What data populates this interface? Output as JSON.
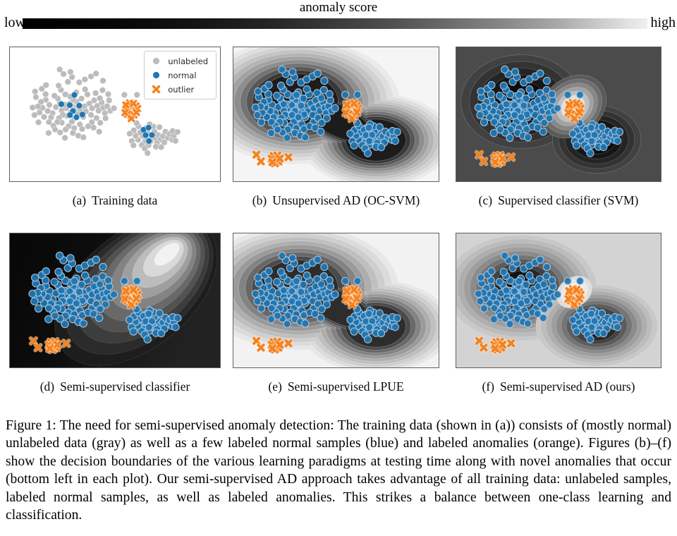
{
  "colorbar": {
    "title": "anomaly score",
    "left_label": "low",
    "right_label": "high",
    "gradient": [
      "#000000",
      "#efefef"
    ]
  },
  "legend": {
    "items": [
      {
        "label": "unlabeled",
        "marker": "circle",
        "color": "#bcbcbc"
      },
      {
        "label": "normal",
        "marker": "circle",
        "color": "#1f77b4"
      },
      {
        "label": "outlier",
        "marker": "x",
        "color": "#f5821e"
      }
    ]
  },
  "colors": {
    "normal_blue": "#1f77b4",
    "blue_edge": "#a9c6dd",
    "unlabeled_gray": "#bcbcbc",
    "outlier_orange": "#f5821e"
  },
  "figure": {
    "caption": "Figure 1: The need for semi-supervised anomaly detection: The training data (shown in (a)) consists of (mostly normal) unlabeled data (gray) as well as a few labeled normal samples (blue) and labeled anomalies (orange). Figures (b)–(f) show the decision boundaries of the various learning paradigms at testing time along with novel anomalies that occur (bottom left in each plot). Our semi-supervised AD approach takes advantage of all training data: unlabeled samples, labeled normal samples, as well as labeled anomalies. This strikes a balance between one-class learning and classification."
  },
  "chart_data": {
    "type": "scatter",
    "description": "Six small-multiple 2D scatter panels; panels b-f overlay grayscale anomaly-score contour fields. Point coordinates are fractions of panel width/height (x right, y down).",
    "points": {
      "cluster_left": [
        [
          0.296,
          0.438
        ],
        [
          0.312,
          0.452
        ],
        [
          0.283,
          0.421
        ],
        [
          0.305,
          0.469
        ],
        [
          0.327,
          0.43
        ],
        [
          0.268,
          0.455
        ],
        [
          0.29,
          0.487
        ],
        [
          0.318,
          0.405
        ],
        [
          0.259,
          0.428
        ],
        [
          0.334,
          0.462
        ],
        [
          0.246,
          0.472
        ],
        [
          0.355,
          0.441
        ],
        [
          0.301,
          0.392
        ],
        [
          0.273,
          0.512
        ],
        [
          0.322,
          0.498
        ],
        [
          0.238,
          0.415
        ],
        [
          0.362,
          0.478
        ],
        [
          0.287,
          0.368
        ],
        [
          0.341,
          0.383
        ],
        [
          0.252,
          0.504
        ],
        [
          0.219,
          0.447
        ],
        [
          0.378,
          0.42
        ],
        [
          0.308,
          0.532
        ],
        [
          0.264,
          0.352
        ],
        [
          0.349,
          0.52
        ],
        [
          0.228,
          0.382
        ],
        [
          0.391,
          0.455
        ],
        [
          0.295,
          0.556
        ],
        [
          0.234,
          0.528
        ],
        [
          0.369,
          0.352
        ],
        [
          0.203,
          0.492
        ],
        [
          0.401,
          0.396
        ],
        [
          0.316,
          0.337
        ],
        [
          0.247,
          0.563
        ],
        [
          0.386,
          0.505
        ],
        [
          0.212,
          0.362
        ],
        [
          0.416,
          0.438
        ],
        [
          0.279,
          0.59
        ],
        [
          0.226,
          0.558
        ],
        [
          0.358,
          0.314
        ],
        [
          0.188,
          0.43
        ],
        [
          0.422,
          0.474
        ],
        [
          0.333,
          0.576
        ],
        [
          0.196,
          0.523
        ],
        [
          0.408,
          0.342
        ],
        [
          0.243,
          0.318
        ],
        [
          0.437,
          0.412
        ],
        [
          0.306,
          0.604
        ],
        [
          0.18,
          0.476
        ],
        [
          0.39,
          0.56
        ],
        [
          0.171,
          0.392
        ],
        [
          0.445,
          0.452
        ],
        [
          0.265,
          0.614
        ],
        [
          0.207,
          0.586
        ],
        [
          0.428,
          0.38
        ],
        [
          0.232,
          0.287
        ],
        [
          0.452,
          0.492
        ],
        [
          0.344,
          0.61
        ],
        [
          0.163,
          0.52
        ],
        [
          0.412,
          0.528
        ],
        [
          0.155,
          0.452
        ],
        [
          0.33,
          0.262
        ],
        [
          0.372,
          0.59
        ],
        [
          0.186,
          0.558
        ],
        [
          0.441,
          0.32
        ],
        [
          0.276,
          0.258
        ],
        [
          0.463,
          0.44
        ],
        [
          0.3,
          0.64
        ],
        [
          0.148,
          0.408
        ],
        [
          0.398,
          0.6
        ],
        [
          0.141,
          0.487
        ],
        [
          0.357,
          0.24
        ],
        [
          0.239,
          0.636
        ],
        [
          0.17,
          0.35
        ],
        [
          0.455,
          0.53
        ],
        [
          0.296,
          0.222
        ],
        [
          0.472,
          0.396
        ],
        [
          0.215,
          0.614
        ],
        [
          0.133,
          0.442
        ],
        [
          0.43,
          0.564
        ],
        [
          0.124,
          0.372
        ],
        [
          0.386,
          0.218
        ],
        [
          0.326,
          0.66
        ],
        [
          0.152,
          0.31
        ],
        [
          0.468,
          0.35
        ],
        [
          0.255,
          0.2
        ],
        [
          0.478,
          0.474
        ],
        [
          0.184,
          0.64
        ],
        [
          0.117,
          0.506
        ],
        [
          0.443,
          0.25
        ],
        [
          0.262,
          0.676
        ],
        [
          0.41,
          0.196
        ],
        [
          0.136,
          0.56
        ],
        [
          0.288,
          0.184
        ],
        [
          0.172,
          0.282
        ],
        [
          0.35,
          0.672
        ],
        [
          0.12,
          0.33
        ],
        [
          0.425,
          0.63
        ],
        [
          0.108,
          0.45
        ],
        [
          0.237,
          0.166
        ]
      ],
      "cluster_left_extra": [
        [
          0.545,
          0.355
        ],
        [
          0.605,
          0.355
        ],
        [
          0.495,
          0.455
        ]
      ],
      "cluster_right": [
        [
          0.662,
          0.668
        ],
        [
          0.678,
          0.65
        ],
        [
          0.645,
          0.682
        ],
        [
          0.692,
          0.676
        ],
        [
          0.655,
          0.64
        ],
        [
          0.705,
          0.655
        ],
        [
          0.632,
          0.66
        ],
        [
          0.67,
          0.7
        ],
        [
          0.688,
          0.628
        ],
        [
          0.64,
          0.712
        ],
        [
          0.715,
          0.69
        ],
        [
          0.62,
          0.636
        ],
        [
          0.7,
          0.714
        ],
        [
          0.648,
          0.604
        ],
        [
          0.728,
          0.664
        ],
        [
          0.61,
          0.69
        ],
        [
          0.682,
          0.59
        ],
        [
          0.66,
          0.73
        ],
        [
          0.74,
          0.63
        ],
        [
          0.598,
          0.66
        ],
        [
          0.712,
          0.596
        ],
        [
          0.628,
          0.73
        ],
        [
          0.752,
          0.676
        ],
        [
          0.59,
          0.62
        ],
        [
          0.695,
          0.742
        ],
        [
          0.612,
          0.59
        ],
        [
          0.76,
          0.646
        ],
        [
          0.642,
          0.755
        ],
        [
          0.58,
          0.7
        ],
        [
          0.735,
          0.71
        ],
        [
          0.603,
          0.566
        ],
        [
          0.772,
          0.69
        ],
        [
          0.665,
          0.575
        ],
        [
          0.57,
          0.645
        ],
        [
          0.72,
          0.745
        ],
        [
          0.588,
          0.732
        ],
        [
          0.78,
          0.66
        ],
        [
          0.655,
          0.79
        ],
        [
          0.775,
          0.625
        ],
        [
          0.798,
          0.632
        ],
        [
          0.788,
          0.698
        ]
      ],
      "labeled_normal_left": [
        [
          0.245,
          0.425
        ],
        [
          0.285,
          0.432
        ],
        [
          0.307,
          0.356
        ],
        [
          0.33,
          0.436
        ],
        [
          0.3,
          0.476
        ],
        [
          0.286,
          0.506
        ],
        [
          0.345,
          0.502
        ],
        [
          0.317,
          0.522
        ]
      ],
      "labeled_normal_right": [
        [
          0.636,
          0.616
        ],
        [
          0.66,
          0.6
        ],
        [
          0.646,
          0.656
        ],
        [
          0.676,
          0.655
        ],
        [
          0.662,
          0.7
        ]
      ],
      "labeled_outliers": [
        [
          0.572,
          0.462
        ],
        [
          0.585,
          0.445
        ],
        [
          0.562,
          0.478
        ],
        [
          0.595,
          0.47
        ],
        [
          0.568,
          0.43
        ],
        [
          0.58,
          0.492
        ],
        [
          0.555,
          0.452
        ],
        [
          0.6,
          0.438
        ],
        [
          0.576,
          0.51
        ],
        [
          0.59,
          0.505
        ],
        [
          0.56,
          0.5
        ],
        [
          0.608,
          0.458
        ],
        [
          0.57,
          0.415
        ],
        [
          0.548,
          0.488
        ],
        [
          0.588,
          0.42
        ],
        [
          0.578,
          0.532
        ],
        [
          0.552,
          0.43
        ],
        [
          0.602,
          0.486
        ]
      ],
      "novel_anomalies": [
        [
          0.112,
          0.802
        ],
        [
          0.134,
          0.852
        ],
        [
          0.268,
          0.82
        ],
        [
          0.198,
          0.828
        ],
        [
          0.212,
          0.822
        ],
        [
          0.204,
          0.842
        ],
        [
          0.218,
          0.838
        ],
        [
          0.192,
          0.846
        ],
        [
          0.208,
          0.856
        ],
        [
          0.196,
          0.812
        ],
        [
          0.22,
          0.852
        ],
        [
          0.186,
          0.832
        ],
        [
          0.214,
          0.808
        ],
        [
          0.202,
          0.866
        ],
        [
          0.226,
          0.83
        ],
        [
          0.19,
          0.858
        ]
      ]
    },
    "panels": [
      {
        "id": "a",
        "caption": {
          "label": "(a)",
          "title": "Training data"
        },
        "background": "#ffffff",
        "legend": true,
        "layers": [
          {
            "name": "unlabeled-points",
            "sets": [
              "cluster_left",
              "cluster_left_extra",
              "cluster_right"
            ],
            "marker": "circle",
            "color": "#bcbcbc",
            "edge": "rgba(255,255,255,0.65)",
            "edge_width": 0.7,
            "r": 4.4
          },
          {
            "name": "normal-points",
            "sets": [
              "labeled_normal_left",
              "labeled_normal_right"
            ],
            "marker": "circle",
            "color": "#1f77b4",
            "edge": "rgba(255,255,255,0.65)",
            "edge_width": 0.7,
            "r": 4.4
          },
          {
            "name": "outlier-points",
            "sets": [
              "labeled_outliers"
            ],
            "marker": "x",
            "color": "#f5821e",
            "halo": "rgba(255,255,255,0.6)",
            "size": 3.4
          }
        ]
      },
      {
        "id": "b",
        "caption": {
          "label": "(b)",
          "title": "Unsupervised AD (OC-SVM)"
        },
        "contour": {
          "style": "dumbbell",
          "background": "#f5f5f5",
          "step": 0.155,
          "levels": [
            "#eaeaea",
            "#dedede",
            "#d2d2d2",
            "#c4c4c4",
            "#b4b4b4",
            "#a2a2a2",
            "#8d8d8d",
            "#737373",
            "#575757",
            "#383838",
            "#1c1c1c"
          ]
        },
        "layers": [
          {
            "name": "test-normal-points",
            "sets": [
              "cluster_left",
              "cluster_left_extra",
              "cluster_right",
              "labeled_normal_left",
              "labeled_normal_right"
            ],
            "marker": "circle",
            "color": "#1f77b4",
            "edge": "#a9c6dd",
            "edge_width": 1.2,
            "r": 5.2,
            "opacity": 0.93
          },
          {
            "name": "anomaly-points",
            "sets": [
              "labeled_outliers",
              "novel_anomalies"
            ],
            "marker": "x",
            "color": "#f5821e",
            "halo": "rgba(255,255,255,0.55)",
            "size": 3.8
          }
        ]
      },
      {
        "id": "c",
        "caption": {
          "label": "(c)",
          "title": "Supervised classifier (SVM)"
        },
        "contour": {
          "style": "islands",
          "background": "#4b4b4b",
          "levels": [
            "#414141",
            "#333333",
            "#242424",
            "#161616",
            "#0b0b0b"
          ],
          "light_levels": [
            "#5a5a5a",
            "#6f6f6f",
            "#878787",
            "#a2a2a2",
            "#c0c0c0",
            "#e0e0e0",
            "#f8f8f8"
          ]
        },
        "layers": [
          {
            "name": "test-normal-points",
            "sets": [
              "cluster_left",
              "cluster_left_extra",
              "cluster_right",
              "labeled_normal_left",
              "labeled_normal_right"
            ],
            "marker": "circle",
            "color": "#1f77b4",
            "edge": "#a9c6dd",
            "edge_width": 1.2,
            "r": 5.2,
            "opacity": 0.93
          },
          {
            "name": "anomaly-points",
            "sets": [
              "labeled_outliers",
              "novel_anomalies"
            ],
            "marker": "x",
            "color": "#f5821e",
            "halo": "rgba(255,255,255,0.55)",
            "size": 3.8
          }
        ]
      },
      {
        "id": "d",
        "caption": {
          "label": "(d)",
          "title": "Semi-supervised classifier"
        },
        "contour": {
          "style": "wedge",
          "background": "#0a0a0a",
          "bg_stops": [
            "#070707",
            "#0d0d0d",
            "#181818",
            "#222222"
          ],
          "levels": [
            "#1d1d1d",
            "#2b2b2b",
            "#3d3d3d",
            "#525252",
            "#696969",
            "#838383",
            "#9e9e9e",
            "#bcbcbc",
            "#d9d9d9",
            "#f2f2f2"
          ]
        },
        "layers": [
          {
            "name": "test-normal-points",
            "sets": [
              "cluster_left",
              "cluster_left_extra",
              "cluster_right",
              "labeled_normal_left",
              "labeled_normal_right"
            ],
            "marker": "circle",
            "color": "#1f77b4",
            "edge": "#a9c6dd",
            "edge_width": 1.2,
            "r": 5.2,
            "opacity": 0.93
          },
          {
            "name": "anomaly-points",
            "sets": [
              "labeled_outliers",
              "novel_anomalies"
            ],
            "marker": "x",
            "color": "#f5821e",
            "halo": "rgba(255,255,255,0.55)",
            "size": 3.8
          }
        ]
      },
      {
        "id": "e",
        "caption": {
          "label": "(e)",
          "title": "Semi-supervised LPUE"
        },
        "contour": {
          "style": "dumbbell",
          "background": "#f2f2f2",
          "step": 0.17,
          "levels": [
            "#e7e7e7",
            "#dbdbdb",
            "#cecece",
            "#bfbfbf",
            "#aeaeae",
            "#9a9a9a",
            "#838383",
            "#686868",
            "#4a4a4a",
            "#2d2d2d"
          ]
        },
        "layers": [
          {
            "name": "test-normal-points",
            "sets": [
              "cluster_left",
              "cluster_left_extra",
              "cluster_right",
              "labeled_normal_left",
              "labeled_normal_right"
            ],
            "marker": "circle",
            "color": "#1f77b4",
            "edge": "#a9c6dd",
            "edge_width": 1.2,
            "r": 5.2,
            "opacity": 0.93
          },
          {
            "name": "anomaly-points",
            "sets": [
              "labeled_outliers",
              "novel_anomalies"
            ],
            "marker": "x",
            "color": "#f5821e",
            "halo": "rgba(255,255,255,0.55)",
            "size": 3.8
          }
        ]
      },
      {
        "id": "f",
        "caption": {
          "label": "(f)",
          "title": "Semi-supervised AD (ours)"
        },
        "contour": {
          "style": "peaks",
          "background": "#d3d3d3",
          "levels": [
            "#c8c8c8",
            "#bcbcbc",
            "#aeaeae",
            "#9e9e9e",
            "#8b8b8b",
            "#757575",
            "#5c5c5c",
            "#424242",
            "#282828",
            "#121212"
          ],
          "light_levels": [
            "#dedede",
            "#e9e9e9",
            "#f3f3f3",
            "#fcfcfc"
          ]
        },
        "layers": [
          {
            "name": "test-normal-points",
            "sets": [
              "cluster_left",
              "cluster_left_extra",
              "cluster_right",
              "labeled_normal_left",
              "labeled_normal_right"
            ],
            "marker": "circle",
            "color": "#1f77b4",
            "edge": "#a9c6dd",
            "edge_width": 1.2,
            "r": 5.2,
            "opacity": 0.93
          },
          {
            "name": "anomaly-points",
            "sets": [
              "labeled_outliers",
              "novel_anomalies"
            ],
            "marker": "x",
            "color": "#f5821e",
            "halo": "rgba(255,255,255,0.55)",
            "size": 3.8
          }
        ]
      }
    ]
  }
}
